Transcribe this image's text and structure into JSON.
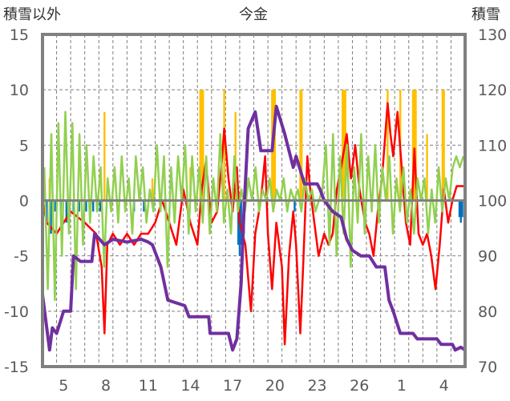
{
  "chart_data": {
    "type": "line",
    "title": "今金",
    "ylabel_left": "積雪以外",
    "ylabel_right": "積雪",
    "ylim_left": [
      -15,
      15
    ],
    "ylim_right": [
      70,
      130
    ],
    "yticks_left": [
      "15",
      "10",
      "5",
      "0",
      "-5",
      "-10",
      "-15"
    ],
    "yticks_right": [
      "130",
      "120",
      "110",
      "100",
      "90",
      "80",
      "70"
    ],
    "xlim_days": [
      0,
      30
    ],
    "xticks": [
      {
        "day": 1.5,
        "label": "5"
      },
      {
        "day": 4.5,
        "label": "8"
      },
      {
        "day": 7.5,
        "label": "11"
      },
      {
        "day": 10.5,
        "label": "14"
      },
      {
        "day": 13.5,
        "label": "17"
      },
      {
        "day": 16.5,
        "label": "20"
      },
      {
        "day": 19.5,
        "label": "23"
      },
      {
        "day": 22.5,
        "label": "26"
      },
      {
        "day": 25.5,
        "label": "1"
      },
      {
        "day": 28.5,
        "label": "4"
      }
    ],
    "grid": true,
    "colors": {
      "red": "#ff0000",
      "green": "#92d050",
      "purple": "#7030a0",
      "orange": "#ffc000",
      "blue": "#0070c0",
      "frame": "#808080"
    },
    "series": [
      {
        "name": "red",
        "axis": "left",
        "points": [
          [
            0,
            0
          ],
          [
            0.3,
            -2
          ],
          [
            1,
            -3
          ],
          [
            2,
            -1
          ],
          [
            3,
            -2
          ],
          [
            3.8,
            -3
          ],
          [
            4.2,
            -6
          ],
          [
            4.4,
            -12
          ],
          [
            4.6,
            -4
          ],
          [
            5,
            -3
          ],
          [
            5.5,
            -4
          ],
          [
            6,
            -3
          ],
          [
            6.5,
            -4
          ],
          [
            7,
            -3
          ],
          [
            7.5,
            -3
          ],
          [
            8,
            -2
          ],
          [
            8.5,
            0
          ],
          [
            9,
            -2
          ],
          [
            9.5,
            -4
          ],
          [
            10,
            1
          ],
          [
            10.5,
            -2
          ],
          [
            11,
            -4
          ],
          [
            11.3,
            1
          ],
          [
            11.6,
            3.5
          ],
          [
            12,
            -2
          ],
          [
            12.4,
            -1
          ],
          [
            12.7,
            3
          ],
          [
            12.9,
            6.5
          ],
          [
            13.2,
            2
          ],
          [
            13.5,
            -1
          ],
          [
            13.8,
            3
          ],
          [
            14,
            -2
          ],
          [
            14.4,
            -4
          ],
          [
            14.8,
            -10
          ],
          [
            15.1,
            -3
          ],
          [
            15.5,
            0
          ],
          [
            15.8,
            4
          ],
          [
            16,
            -3
          ],
          [
            16.3,
            -8
          ],
          [
            16.6,
            -2
          ],
          [
            17,
            -6
          ],
          [
            17.2,
            -13
          ],
          [
            17.5,
            -5
          ],
          [
            17.8,
            -1
          ],
          [
            18,
            -4
          ],
          [
            18.3,
            -12
          ],
          [
            18.5,
            -6
          ],
          [
            18.8,
            4
          ],
          [
            19,
            1
          ],
          [
            19.3,
            -2
          ],
          [
            19.6,
            -5
          ],
          [
            20,
            -3
          ],
          [
            20.3,
            -4
          ],
          [
            20.6,
            -3
          ],
          [
            20.9,
            1
          ],
          [
            21.2,
            3
          ],
          [
            21.6,
            6
          ],
          [
            21.9,
            2
          ],
          [
            22.2,
            5
          ],
          [
            22.5,
            1
          ],
          [
            22.9,
            -2
          ],
          [
            23.2,
            -3
          ],
          [
            23.5,
            -5
          ],
          [
            23.8,
            -1
          ],
          [
            24.1,
            2
          ],
          [
            24.5,
            8.8
          ],
          [
            24.7,
            6
          ],
          [
            24.9,
            4
          ],
          [
            25.2,
            8
          ],
          [
            25.5,
            3
          ],
          [
            25.8,
            -2
          ],
          [
            26.1,
            -4
          ],
          [
            26.4,
            4.7
          ],
          [
            26.7,
            -3
          ],
          [
            27,
            -4
          ],
          [
            27.3,
            -3
          ],
          [
            27.6,
            -5
          ],
          [
            27.9,
            -8
          ],
          [
            28.2,
            -4
          ],
          [
            28.5,
            1
          ],
          [
            28.8,
            -2
          ],
          [
            29.1,
            0
          ],
          [
            29.4,
            1.3
          ],
          [
            30,
            1.3
          ]
        ]
      },
      {
        "name": "green",
        "axis": "left",
        "step": 0.25,
        "values": [
          3,
          -8,
          6,
          -9,
          7,
          -5,
          8,
          -3,
          7,
          -8,
          6,
          -4,
          5,
          -2,
          4,
          -1,
          3,
          -6,
          2,
          -1,
          3,
          -2,
          4,
          -1,
          2,
          -3,
          4,
          0,
          3,
          -2,
          1,
          -1,
          5,
          -1,
          4,
          -6,
          3,
          -2,
          4,
          0,
          5,
          -3,
          4,
          -1,
          3,
          -2,
          4,
          -3,
          2,
          -1,
          6,
          -2,
          1,
          -3,
          4,
          -1,
          1,
          -1,
          2,
          0,
          3,
          -1,
          1,
          0,
          2,
          -1,
          1,
          0,
          2,
          -1,
          1,
          0,
          1,
          -1,
          2,
          0,
          1,
          -1,
          0,
          1,
          5,
          -4,
          6,
          -5,
          4,
          -3,
          5,
          -6,
          3,
          -2,
          6,
          -3,
          4,
          -1,
          5,
          -2,
          3,
          0,
          4,
          -3,
          2,
          -1,
          3,
          -2,
          1,
          -3,
          2,
          0,
          2,
          -3,
          1,
          -2,
          3,
          -1,
          2,
          0,
          3,
          4,
          3,
          4
        ]
      },
      {
        "name": "purple",
        "axis": "right",
        "points": [
          [
            0,
            83
          ],
          [
            0.5,
            73
          ],
          [
            0.7,
            77
          ],
          [
            1.0,
            76
          ],
          [
            1.5,
            80
          ],
          [
            2.0,
            80
          ],
          [
            2.2,
            90
          ],
          [
            2.7,
            89
          ],
          [
            3.5,
            89
          ],
          [
            3.7,
            94
          ],
          [
            4.4,
            92
          ],
          [
            5.0,
            93
          ],
          [
            6.0,
            92.5
          ],
          [
            7.0,
            93
          ],
          [
            7.5,
            92.5
          ],
          [
            7.8,
            92
          ],
          [
            8.4,
            88
          ],
          [
            8.9,
            82
          ],
          [
            10.1,
            81
          ],
          [
            10.4,
            79
          ],
          [
            11.8,
            79
          ],
          [
            11.9,
            76
          ],
          [
            13.2,
            76
          ],
          [
            13.5,
            73
          ],
          [
            13.8,
            75
          ],
          [
            14.1,
            85
          ],
          [
            14.3,
            98
          ],
          [
            14.6,
            113
          ],
          [
            15.1,
            116
          ],
          [
            15.5,
            109
          ],
          [
            16.3,
            109
          ],
          [
            16.6,
            117
          ],
          [
            17.2,
            112
          ],
          [
            17.8,
            106
          ],
          [
            18.0,
            108
          ],
          [
            18.6,
            103
          ],
          [
            19.5,
            103
          ],
          [
            19.7,
            102
          ],
          [
            20.0,
            100
          ],
          [
            20.6,
            98
          ],
          [
            21.2,
            97
          ],
          [
            21.6,
            93
          ],
          [
            22.0,
            91
          ],
          [
            22.6,
            90
          ],
          [
            23.2,
            90
          ],
          [
            23.7,
            88
          ],
          [
            24.3,
            88
          ],
          [
            24.6,
            82
          ],
          [
            24.9,
            80
          ],
          [
            25.4,
            76
          ],
          [
            26.3,
            76
          ],
          [
            26.6,
            75
          ],
          [
            28.0,
            75
          ],
          [
            28.3,
            74
          ],
          [
            29.1,
            74
          ],
          [
            29.3,
            73
          ],
          [
            29.7,
            73.5
          ],
          [
            30,
            73
          ]
        ]
      }
    ],
    "bars": [
      {
        "name": "orange",
        "axis": "left",
        "points": [
          [
            0.5,
            2
          ],
          [
            4.4,
            8
          ],
          [
            7.8,
            2
          ],
          [
            10.5,
            3
          ],
          [
            11.2,
            10
          ],
          [
            11.3,
            10
          ],
          [
            11.4,
            10
          ],
          [
            12.9,
            10
          ],
          [
            13.7,
            8
          ],
          [
            16.3,
            10
          ],
          [
            16.4,
            10
          ],
          [
            16.5,
            10
          ],
          [
            18.3,
            10
          ],
          [
            18.4,
            10
          ],
          [
            21.3,
            10
          ],
          [
            21.4,
            10
          ],
          [
            21.5,
            10
          ],
          [
            24.5,
            10
          ],
          [
            25.4,
            10
          ],
          [
            26.3,
            10
          ],
          [
            26.4,
            10
          ],
          [
            26.5,
            10
          ],
          [
            27.3,
            6
          ],
          [
            28.4,
            10
          ],
          [
            28.5,
            10
          ]
        ]
      },
      {
        "name": "blue",
        "axis": "left",
        "points": [
          [
            0.3,
            -2
          ],
          [
            0.6,
            -3
          ],
          [
            0.9,
            -1
          ],
          [
            1.3,
            -1
          ],
          [
            1.7,
            -2
          ],
          [
            2.2,
            -1
          ],
          [
            2.6,
            -1
          ],
          [
            3.1,
            -1
          ],
          [
            3.6,
            -1
          ],
          [
            4.1,
            -1
          ],
          [
            6.5,
            -1
          ],
          [
            7.2,
            -1
          ],
          [
            13.9,
            -4
          ],
          [
            14.0,
            -5
          ],
          [
            14.1,
            -4
          ],
          [
            14.3,
            -3
          ],
          [
            17.9,
            -1
          ],
          [
            29.6,
            -1.5
          ],
          [
            29.7,
            -2
          ],
          [
            29.8,
            -1.5
          ]
        ]
      }
    ]
  }
}
